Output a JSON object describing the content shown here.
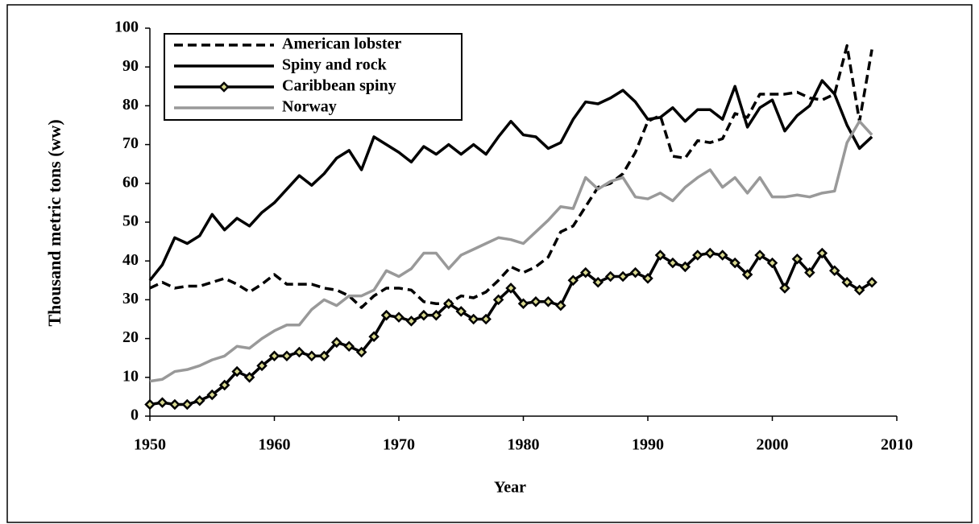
{
  "chart_data": {
    "type": "line",
    "xlabel": "Year",
    "ylabel": "Thousand metric tons (ww)",
    "x": [
      1950,
      1951,
      1952,
      1953,
      1954,
      1955,
      1956,
      1957,
      1958,
      1959,
      1960,
      1961,
      1962,
      1963,
      1964,
      1965,
      1966,
      1967,
      1968,
      1969,
      1970,
      1971,
      1972,
      1973,
      1974,
      1975,
      1976,
      1977,
      1978,
      1979,
      1980,
      1981,
      1982,
      1983,
      1984,
      1985,
      1986,
      1987,
      1988,
      1989,
      1990,
      1991,
      1992,
      1993,
      1994,
      1995,
      1996,
      1997,
      1998,
      1999,
      2000,
      2001,
      2002,
      2003,
      2004,
      2005,
      2006,
      2007,
      2008
    ],
    "series": [
      {
        "name": "American lobster",
        "color": "#000000",
        "dash": true,
        "marker": false,
        "values": [
          33,
          34.5,
          33,
          33.5,
          33.5,
          34.5,
          35.5,
          34,
          32,
          34,
          36.5,
          34,
          34,
          34,
          33,
          32.5,
          31,
          28,
          31,
          33,
          33,
          32.5,
          29.5,
          29,
          29,
          31,
          30.5,
          32,
          35,
          38.5,
          37,
          38.5,
          41,
          47.5,
          49,
          54,
          59,
          60,
          62.5,
          68,
          76,
          77.5,
          67,
          66.5,
          71,
          70.5,
          71.5,
          78,
          77,
          83,
          83,
          83,
          83.5,
          82,
          81.5,
          83,
          95.5,
          76,
          94.5
        ]
      },
      {
        "name": "Spiny and rock",
        "color": "#000000",
        "dash": false,
        "marker": false,
        "values": [
          35,
          39,
          46,
          44.5,
          46.5,
          52,
          48,
          51,
          49,
          52.5,
          55,
          58.5,
          62,
          59.5,
          62.5,
          66.5,
          68.5,
          63.5,
          72,
          70,
          68,
          65.5,
          69.5,
          67.5,
          70,
          67.5,
          70,
          67.5,
          72,
          76,
          72.5,
          72,
          69,
          70.5,
          76.5,
          81,
          80.5,
          82,
          84,
          81,
          76.5,
          77,
          79.5,
          76,
          79,
          79,
          76.5,
          85,
          74.5,
          79.5,
          81.5,
          73.5,
          77.5,
          80,
          86.5,
          83,
          75,
          69,
          72
        ]
      },
      {
        "name": "Caribbean spiny",
        "color": "#000000",
        "dash": false,
        "marker": true,
        "values": [
          3,
          3.5,
          3,
          3,
          4,
          5.5,
          8,
          11.5,
          10,
          13,
          15.5,
          15.5,
          16.5,
          15.5,
          15.5,
          19,
          18,
          16.5,
          20.5,
          26,
          25.5,
          24.5,
          26,
          26,
          29,
          27,
          25,
          25,
          30,
          33,
          29,
          29.5,
          29.5,
          28.5,
          35,
          37,
          34.5,
          36,
          36,
          37,
          35.5,
          41.5,
          39.5,
          38.5,
          41.5,
          42,
          41.5,
          39.5,
          36.5,
          41.5,
          39.5,
          33,
          40.5,
          37,
          42,
          37.5,
          34.5,
          32.5,
          34.5
        ]
      },
      {
        "name": "Norway",
        "color": "#999999",
        "dash": false,
        "marker": false,
        "values": [
          9,
          9.5,
          11.5,
          12,
          13,
          14.5,
          15.5,
          18,
          17.5,
          20,
          22,
          23.5,
          23.5,
          27.5,
          30,
          28.5,
          31,
          31,
          32.5,
          37.5,
          36,
          38,
          42,
          42,
          38,
          41.5,
          43,
          44.5,
          46,
          45.5,
          44.5,
          47.5,
          50.5,
          54,
          53.5,
          61.5,
          58.5,
          60.5,
          61.5,
          56.5,
          56,
          57.5,
          55.5,
          59,
          61.5,
          63.5,
          59,
          61.5,
          57.5,
          61.5,
          56.5,
          56.5,
          57,
          56.5,
          57.5,
          58,
          70.5,
          76,
          72.5
        ]
      }
    ],
    "xlim": [
      1950,
      2010
    ],
    "xticks": [
      1950,
      1960,
      1970,
      1980,
      1990,
      2000,
      2010
    ],
    "ylim": [
      0,
      100
    ],
    "yticks": [
      0,
      10,
      20,
      30,
      40,
      50,
      60,
      70,
      80,
      90,
      100
    ]
  }
}
